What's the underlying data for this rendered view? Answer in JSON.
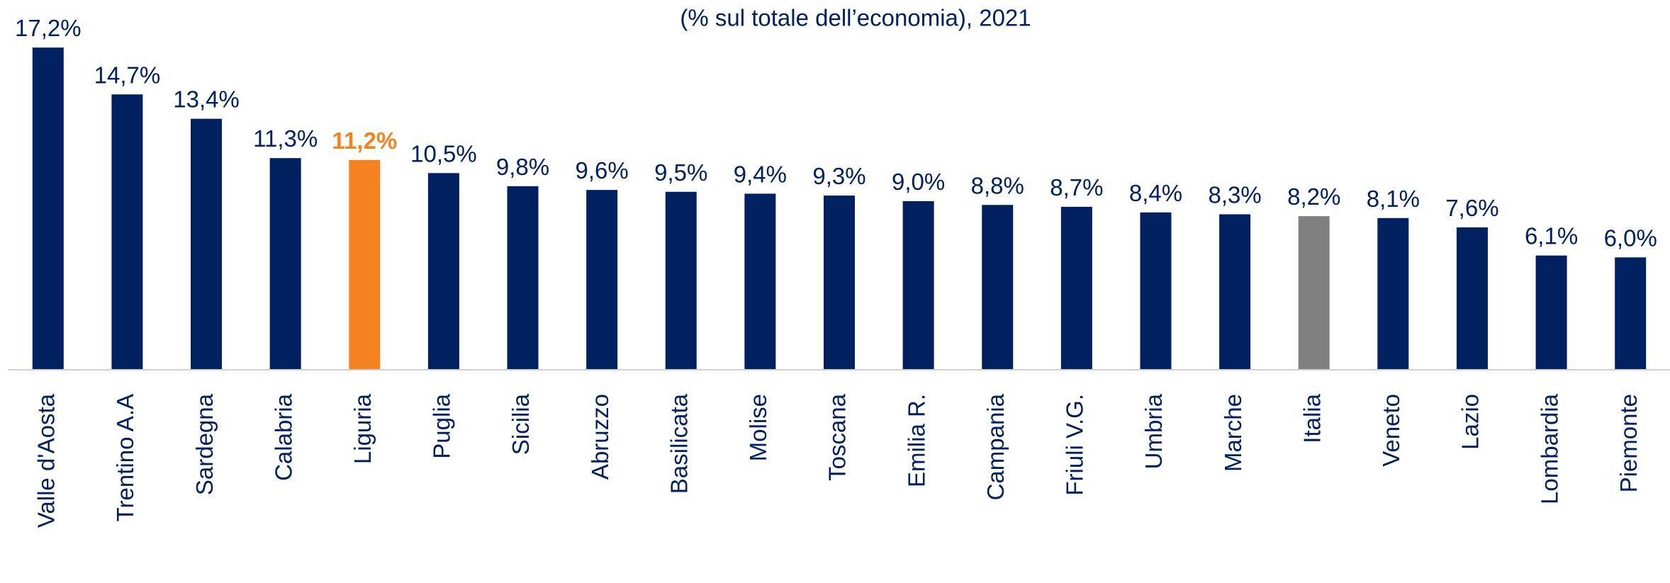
{
  "chart_data": {
    "type": "bar",
    "subtitle": "(% sul totale dell’economia), 2021",
    "categories": [
      "Valle d'Aosta",
      "Trentino A.A",
      "Sardegna",
      "Calabria",
      "Liguria",
      "Puglia",
      "Sicilia",
      "Abruzzo",
      "Basilicata",
      "Molise",
      "Toscana",
      "Emilia R.",
      "Campania",
      "Friuli V.G.",
      "Umbria",
      "Marche",
      "Italia",
      "Veneto",
      "Lazio",
      "Lombardia",
      "Piemonte"
    ],
    "values": [
      17.2,
      14.7,
      13.4,
      11.3,
      11.2,
      10.5,
      9.8,
      9.6,
      9.5,
      9.4,
      9.3,
      9.0,
      8.8,
      8.7,
      8.4,
      8.3,
      8.2,
      8.1,
      7.6,
      6.1,
      6.0
    ],
    "value_labels": [
      "17,2%",
      "14,7%",
      "13,4%",
      "11,3%",
      "11,2%",
      "10,5%",
      "9,8%",
      "9,6%",
      "9,5%",
      "9,4%",
      "9,3%",
      "9,0%",
      "8,8%",
      "8,7%",
      "8,4%",
      "8,3%",
      "8,2%",
      "8,1%",
      "7,6%",
      "6,1%",
      "6,0%"
    ],
    "colors": [
      "#002060",
      "#002060",
      "#002060",
      "#002060",
      "#f58220",
      "#002060",
      "#002060",
      "#002060",
      "#002060",
      "#002060",
      "#002060",
      "#002060",
      "#002060",
      "#002060",
      "#002060",
      "#002060",
      "#808080",
      "#002060",
      "#002060",
      "#002060",
      "#002060"
    ],
    "value_label_colors": [
      "#002060",
      "#002060",
      "#002060",
      "#002060",
      "#f58220",
      "#002060",
      "#002060",
      "#002060",
      "#002060",
      "#002060",
      "#002060",
      "#002060",
      "#002060",
      "#002060",
      "#002060",
      "#002060",
      "#002060",
      "#002060",
      "#002060",
      "#002060",
      "#002060"
    ],
    "ylim": [
      0,
      18
    ]
  }
}
